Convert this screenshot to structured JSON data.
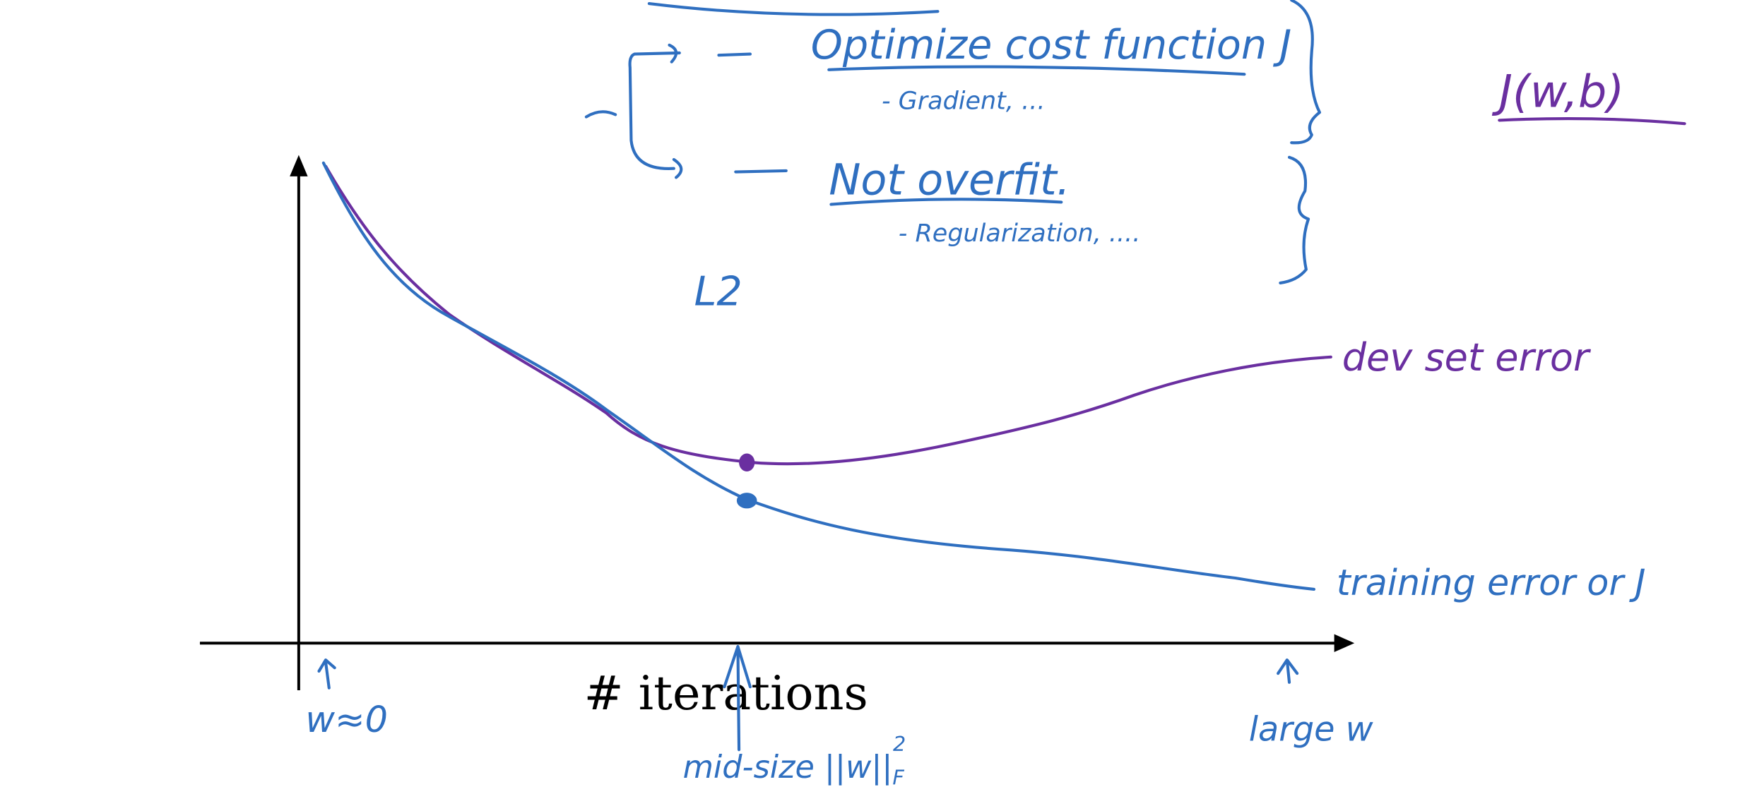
{
  "notes": {
    "item1": "Optimize cost function J",
    "item1_sub": "- Gradient, ...",
    "item2": "Not overfit.",
    "item2_sub": "- Regularization, ....",
    "l2_label": "L2",
    "cost_label": "J(w,b)"
  },
  "plot": {
    "x_axis_label": "# iterations",
    "dev_curve_label": "dev set error",
    "train_curve_label": "training error or J",
    "left_marker": "w≈0",
    "mid_marker": "mid-size ||w||",
    "mid_marker_sub": "F",
    "mid_marker_sup": "2",
    "right_marker": "large w"
  },
  "colors": {
    "blue_ink": "#2f6fc0",
    "purple_ink": "#6a2fa0",
    "axis": "#000000"
  }
}
